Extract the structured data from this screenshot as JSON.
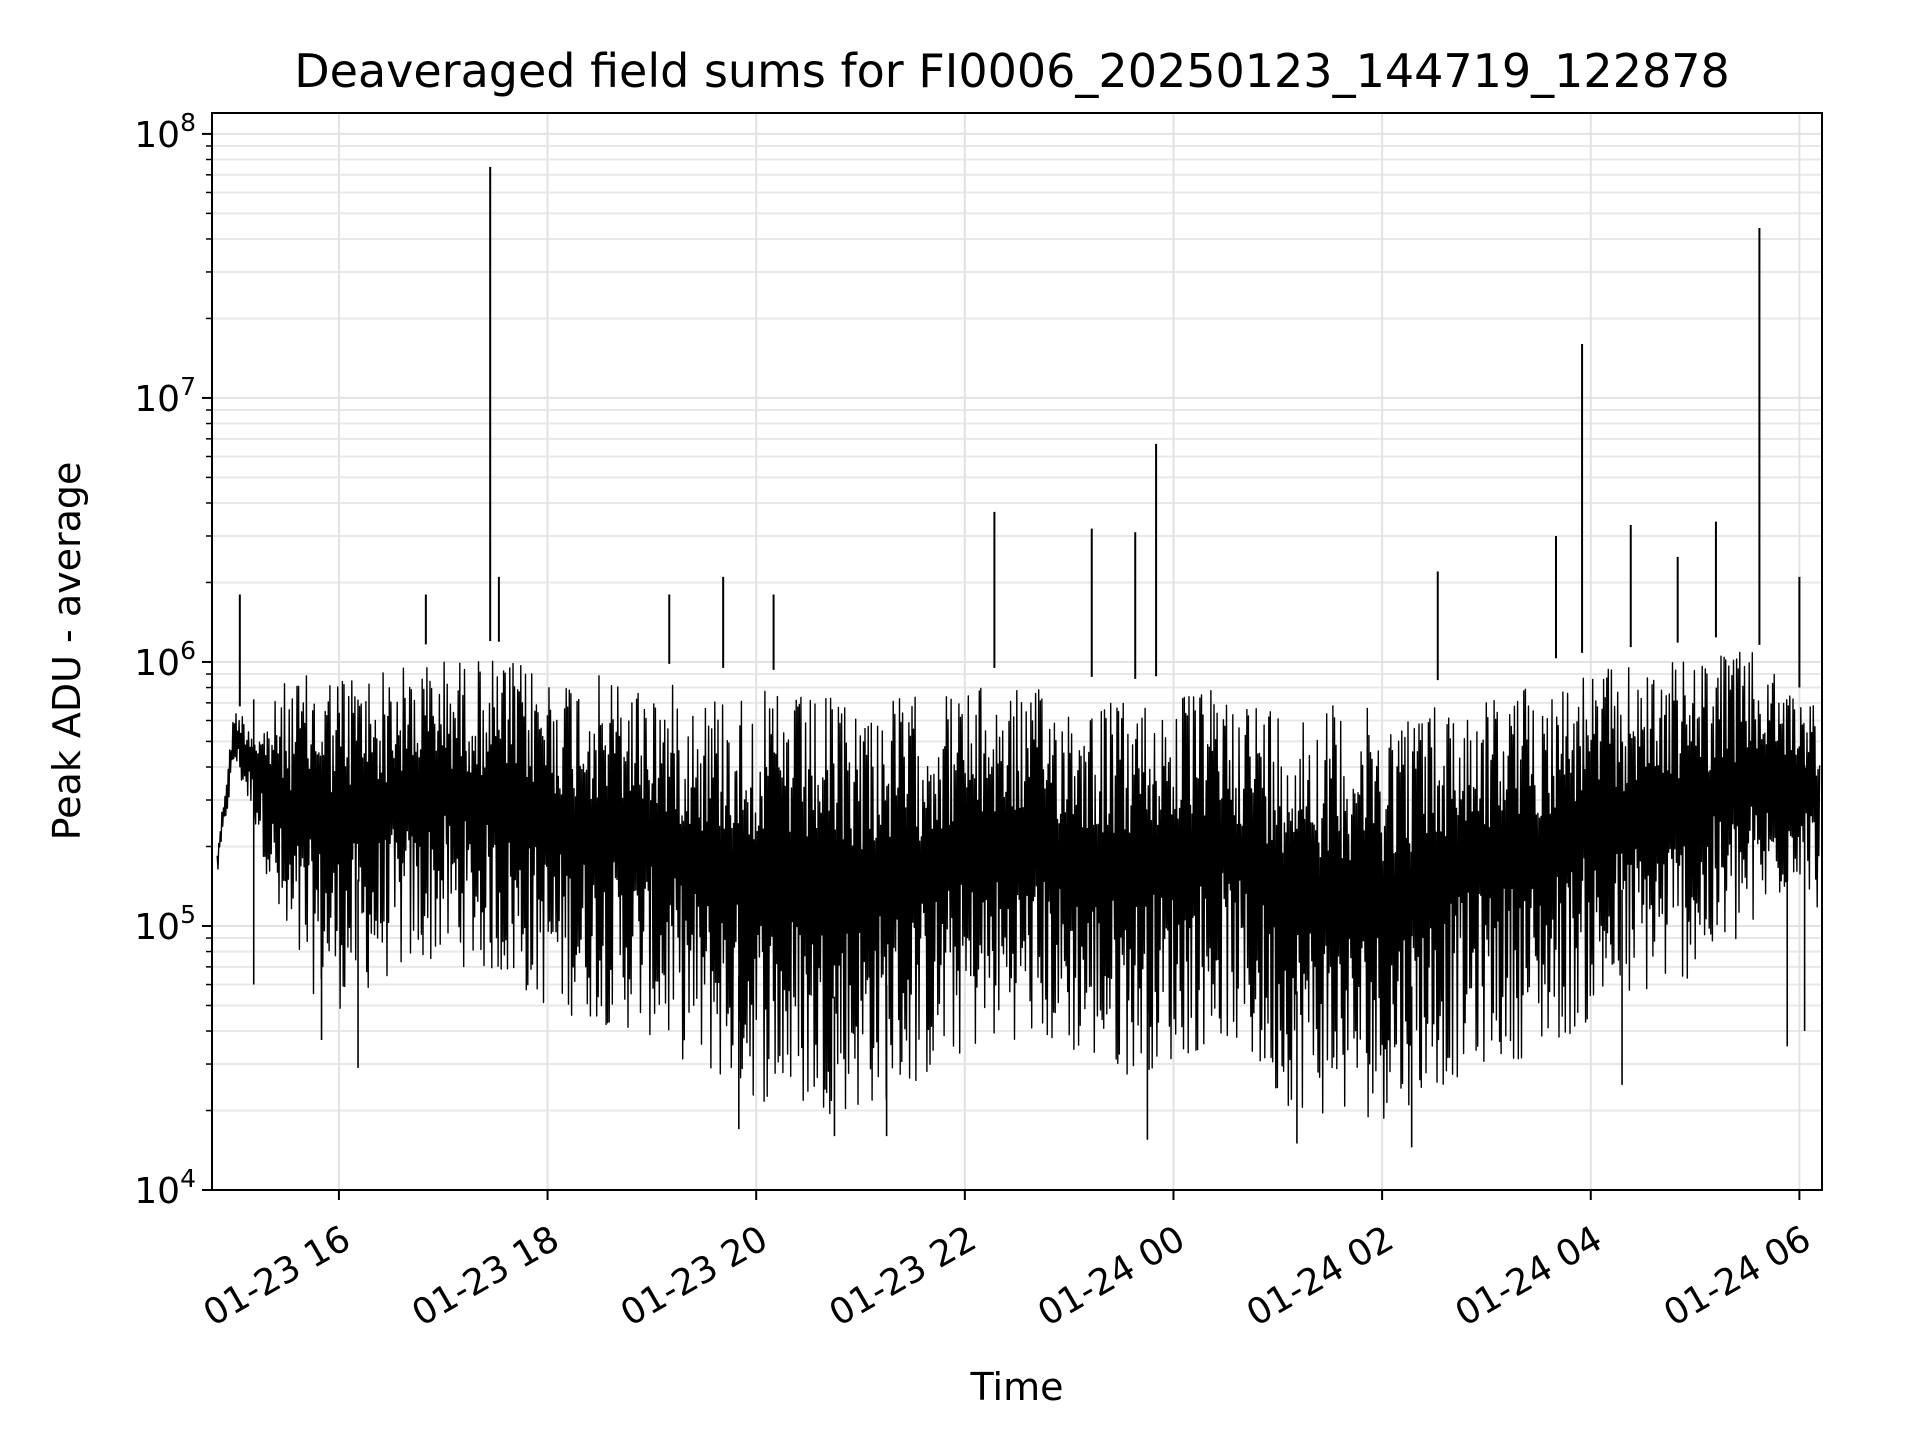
{
  "chart_data": {
    "type": "line",
    "title": "Deaveraged field sums for FI0006_20250123_144719_122878",
    "xlabel": "Time",
    "ylabel": "Peak ADU - average",
    "y_scale": "log",
    "ylim": [
      10000,
      120000000
    ],
    "xlim": [
      "2025-01-23 14:47",
      "2025-01-24 06:13"
    ],
    "grid": true,
    "grid_minor": true,
    "line_color": "#000000",
    "y_ticks": [
      {
        "value": 10000,
        "base": "10",
        "exp": "4"
      },
      {
        "value": 100000,
        "base": "10",
        "exp": "5"
      },
      {
        "value": 1000000,
        "base": "10",
        "exp": "6"
      },
      {
        "value": 10000000,
        "base": "10",
        "exp": "7"
      },
      {
        "value": 100000000,
        "base": "10",
        "exp": "8"
      }
    ],
    "x_ticks": [
      {
        "time": "2025-01-23 16:00",
        "label": "01-23 16"
      },
      {
        "time": "2025-01-23 18:00",
        "label": "01-23 18"
      },
      {
        "time": "2025-01-23 20:00",
        "label": "01-23 20"
      },
      {
        "time": "2025-01-23 22:00",
        "label": "01-23 22"
      },
      {
        "time": "2025-01-24 00:00",
        "label": "01-24 00"
      },
      {
        "time": "2025-01-24 02:00",
        "label": "01-24 02"
      },
      {
        "time": "2025-01-24 04:00",
        "label": "01-24 04"
      },
      {
        "time": "2025-01-24 06:00",
        "label": "01-24 06"
      }
    ],
    "envelope": {
      "x": [
        "2025-01-23 14:50",
        "2025-01-23 15:00",
        "2025-01-23 15:15",
        "2025-01-23 15:30",
        "2025-01-23 16:00",
        "2025-01-23 16:30",
        "2025-01-23 17:00",
        "2025-01-23 17:30",
        "2025-01-23 18:00",
        "2025-01-23 18:30",
        "2025-01-23 19:00",
        "2025-01-23 19:30",
        "2025-01-23 20:00",
        "2025-01-23 20:30",
        "2025-01-23 21:00",
        "2025-01-23 21:30",
        "2025-01-23 22:00",
        "2025-01-23 22:30",
        "2025-01-23 23:00",
        "2025-01-23 23:30",
        "2025-01-24 00:00",
        "2025-01-24 00:30",
        "2025-01-24 01:00",
        "2025-01-24 01:30",
        "2025-01-24 02:00",
        "2025-01-24 02:30",
        "2025-01-24 03:00",
        "2025-01-24 03:30",
        "2025-01-24 04:00",
        "2025-01-24 04:30",
        "2025-01-24 05:00",
        "2025-01-24 05:30",
        "2025-01-24 06:00",
        "2025-01-24 06:12"
      ],
      "upper": [
        200000,
        700000,
        600000,
        1000000,
        1100000,
        1100000,
        1200000,
        1200000,
        1100000,
        1050000,
        1000000,
        950000,
        950000,
        900000,
        900000,
        900000,
        950000,
        950000,
        900000,
        850000,
        900000,
        950000,
        850000,
        850000,
        800000,
        850000,
        900000,
        1000000,
        1100000,
        1150000,
        1200000,
        1300000,
        800000,
        800000
      ],
      "lower": [
        150000,
        400000,
        200000,
        60000,
        45000,
        60000,
        70000,
        60000,
        45000,
        40000,
        35000,
        25000,
        20000,
        18000,
        18000,
        22000,
        30000,
        35000,
        30000,
        25000,
        28000,
        35000,
        20000,
        17000,
        17000,
        22000,
        28000,
        30000,
        40000,
        50000,
        60000,
        80000,
        150000,
        100000
      ]
    },
    "spikes": [
      {
        "x": "2025-01-23 15:03",
        "y": 1800000
      },
      {
        "x": "2025-01-23 16:50",
        "y": 1800000
      },
      {
        "x": "2025-01-23 17:27",
        "y": 75000000
      },
      {
        "x": "2025-01-23 17:32",
        "y": 2100000
      },
      {
        "x": "2025-01-23 19:10",
        "y": 1800000
      },
      {
        "x": "2025-01-23 19:41",
        "y": 2100000
      },
      {
        "x": "2025-01-23 20:10",
        "y": 1800000
      },
      {
        "x": "2025-01-23 22:17",
        "y": 3700000
      },
      {
        "x": "2025-01-23 23:13",
        "y": 3200000
      },
      {
        "x": "2025-01-23 23:38",
        "y": 3100000
      },
      {
        "x": "2025-01-23 23:50",
        "y": 6700000
      },
      {
        "x": "2025-01-24 02:32",
        "y": 2200000
      },
      {
        "x": "2025-01-24 03:40",
        "y": 3000000
      },
      {
        "x": "2025-01-24 03:55",
        "y": 16000000
      },
      {
        "x": "2025-01-24 04:23",
        "y": 3300000
      },
      {
        "x": "2025-01-24 04:50",
        "y": 2500000
      },
      {
        "x": "2025-01-24 05:12",
        "y": 3400000
      },
      {
        "x": "2025-01-24 05:37",
        "y": 44000000
      },
      {
        "x": "2025-01-24 06:00",
        "y": 2100000
      }
    ],
    "dips": [
      {
        "x": "2025-01-23 15:11",
        "y": 60000
      },
      {
        "x": "2025-01-23 15:50",
        "y": 37000
      },
      {
        "x": "2025-01-23 16:11",
        "y": 29000
      },
      {
        "x": "2025-01-23 19:50",
        "y": 17000
      },
      {
        "x": "2025-01-23 20:45",
        "y": 16000
      },
      {
        "x": "2025-01-23 21:15",
        "y": 16000
      },
      {
        "x": "2025-01-23 23:45",
        "y": 15500
      },
      {
        "x": "2025-01-24 01:11",
        "y": 15000
      },
      {
        "x": "2025-01-24 02:17",
        "y": 14500
      },
      {
        "x": "2025-01-24 04:18",
        "y": 25000
      },
      {
        "x": "2025-01-24 05:53",
        "y": 35000
      },
      {
        "x": "2025-01-24 06:03",
        "y": 40000
      }
    ]
  }
}
